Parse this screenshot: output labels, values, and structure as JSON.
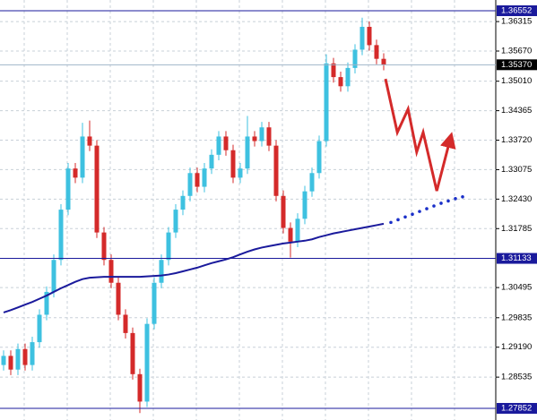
{
  "chart_data": {
    "type": "candlestick",
    "ylim": [
      1.27597,
      1.36787
    ],
    "yticks": [
      1.36315,
      {
        "value": 1.3567,
        "label": "1.35670"
      },
      {
        "value": 1.3501,
        "label": "1.35010"
      },
      1.34365,
      {
        "value": 1.3372,
        "label": "1.33720"
      },
      1.33075,
      {
        "value": 1.3243,
        "label": "1.32430"
      },
      1.31785,
      1.30495,
      1.29835,
      {
        "value": 1.2919,
        "label": "1.29190"
      },
      1.28535
    ],
    "grid": true,
    "candles": {
      "bull_color": "#3ec1e0",
      "bear_color": "#d42a2a",
      "open": [
        1.288,
        1.29,
        1.287,
        1.2915,
        1.288,
        1.293,
        1.299,
        1.304,
        1.311,
        1.322,
        1.331,
        1.329,
        1.338,
        1.336,
        1.317,
        1.311,
        1.306,
        1.299,
        1.295,
        1.286,
        1.28,
        1.297,
        1.306,
        1.311,
        1.317,
        1.322,
        1.325,
        1.33,
        1.327,
        1.331,
        1.334,
        1.338,
        1.335,
        1.329,
        1.331,
        1.338,
        1.337,
        1.34,
        1.336,
        1.325,
        1.318,
        1.315,
        1.32,
        1.326,
        1.33,
        1.337,
        1.354,
        1.351,
        1.349,
        1.353,
        1.357,
        1.362,
        1.358,
        1.355
      ],
      "high": [
        1.2912,
        1.2912,
        1.2927,
        1.2927,
        1.2942,
        1.3002,
        1.3052,
        1.3122,
        1.3232,
        1.3322,
        1.3322,
        1.341,
        1.3415,
        1.3372,
        1.3182,
        1.3122,
        1.3072,
        1.3002,
        1.2962,
        1.2872,
        1.2982,
        1.3072,
        1.3122,
        1.3182,
        1.3232,
        1.3262,
        1.3312,
        1.3312,
        1.3322,
        1.3352,
        1.3392,
        1.3392,
        1.3362,
        1.3322,
        1.3425,
        1.3392,
        1.3412,
        1.3412,
        1.3372,
        1.3262,
        1.3192,
        1.3212,
        1.3272,
        1.3312,
        1.3382,
        1.356,
        1.3552,
        1.3522,
        1.3542,
        1.3582,
        1.364,
        1.3632,
        1.3592,
        1.3562
      ],
      "low": [
        1.2868,
        1.2858,
        1.2858,
        1.2868,
        1.2868,
        1.2918,
        1.2978,
        1.3028,
        1.3098,
        1.3208,
        1.3278,
        1.3278,
        1.3348,
        1.3158,
        1.3098,
        1.3048,
        1.2978,
        1.2938,
        1.2848,
        1.2775,
        1.2788,
        1.2958,
        1.3048,
        1.3098,
        1.3158,
        1.3208,
        1.3238,
        1.3258,
        1.3258,
        1.3298,
        1.3328,
        1.3338,
        1.3278,
        1.3278,
        1.3298,
        1.3358,
        1.3358,
        1.3348,
        1.3238,
        1.3168,
        1.3115,
        1.3138,
        1.3188,
        1.3248,
        1.3288,
        1.3358,
        1.3498,
        1.3478,
        1.3478,
        1.3518,
        1.3558,
        1.3568,
        1.3538,
        1.3525
      ],
      "close": [
        1.29,
        1.287,
        1.2915,
        1.288,
        1.293,
        1.299,
        1.304,
        1.311,
        1.322,
        1.331,
        1.329,
        1.338,
        1.336,
        1.317,
        1.311,
        1.306,
        1.299,
        1.295,
        1.286,
        1.28,
        1.297,
        1.306,
        1.311,
        1.317,
        1.322,
        1.325,
        1.33,
        1.327,
        1.331,
        1.334,
        1.338,
        1.335,
        1.329,
        1.331,
        1.338,
        1.337,
        1.34,
        1.336,
        1.325,
        1.318,
        1.315,
        1.32,
        1.326,
        1.33,
        1.337,
        1.354,
        1.351,
        1.349,
        1.353,
        1.357,
        1.362,
        1.358,
        1.355,
        1.3537
      ]
    },
    "ma": {
      "color": "#1a1a9c",
      "values": [
        1.2995,
        1.3,
        1.3006,
        1.3012,
        1.3018,
        1.3025,
        1.3032,
        1.304,
        1.3048,
        1.3055,
        1.3062,
        1.3068,
        1.3071,
        1.3072,
        1.3073,
        1.3073,
        1.3073,
        1.3073,
        1.3073,
        1.3073,
        1.3074,
        1.3075,
        1.3076,
        1.3078,
        1.3081,
        1.3085,
        1.3089,
        1.3093,
        1.3098,
        1.3103,
        1.3107,
        1.3111,
        1.3116,
        1.3122,
        1.3128,
        1.3133,
        1.3137,
        1.314,
        1.3143,
        1.3146,
        1.3148,
        1.315,
        1.3152,
        1.3155,
        1.316,
        1.3164,
        1.3168,
        1.3171,
        1.3174,
        1.3177,
        1.318,
        1.3183,
        1.3186,
        1.3189
      ]
    },
    "ma_projection": {
      "color": "#1a2fc8",
      "x": [
        54,
        55,
        56,
        57,
        58,
        59,
        60,
        61,
        62,
        63,
        64
      ],
      "values": [
        1.3192,
        1.3198,
        1.3204,
        1.321,
        1.3216,
        1.3222,
        1.3228,
        1.3234,
        1.3239,
        1.3244,
        1.3248
      ]
    },
    "forecast_arrow": {
      "color": "#d42a2a",
      "x": [
        53.25,
        54.9,
        56.4,
        57.6,
        58.5,
        60.4,
        62.25
      ],
      "values": [
        1.3506,
        1.3389,
        1.344,
        1.3346,
        1.3389,
        1.3261,
        1.3373
      ]
    },
    "levels": [
      {
        "value": 1.36552,
        "color": "#1a1a9c"
      },
      {
        "value": 1.31133,
        "color": "#1a1a9c"
      },
      {
        "value": 1.27852,
        "color": "#1a1a9c"
      }
    ],
    "current_price": {
      "value": 1.3537,
      "label": "1.35370",
      "color": "#9fb4c8"
    }
  }
}
